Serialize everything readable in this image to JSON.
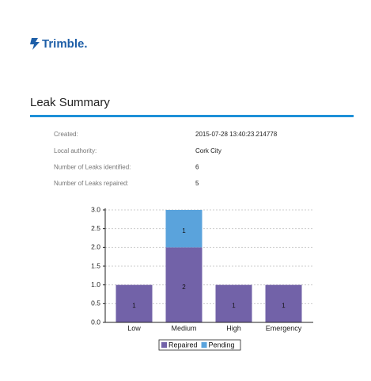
{
  "header": {
    "logo": "Trimble."
  },
  "report": {
    "title": "Leak Summary",
    "fields": [
      {
        "label": "Created:",
        "value": "2015-07-28 13:40:23.214778"
      },
      {
        "label": "Local authority:",
        "value": "Cork City"
      },
      {
        "label": "Number of Leaks identified:",
        "value": "6"
      },
      {
        "label": "Number of Leaks repaired:",
        "value": "5"
      }
    ]
  },
  "chart_data": {
    "type": "stacked_bar",
    "categories": [
      "Low",
      "Medium",
      "High",
      "Emergency"
    ],
    "series": [
      {
        "name": "Repaired",
        "color": "#7262a8",
        "values": [
          1,
          2,
          1,
          1
        ]
      },
      {
        "name": "Pending",
        "color": "#5aa3dc",
        "values": [
          0,
          1,
          0,
          0
        ]
      }
    ],
    "ylim": [
      0,
      3
    ],
    "yticks": [
      {
        "value": 0,
        "label": "0.0"
      },
      0.5,
      {
        "value": 1,
        "label": "1.0"
      },
      1.5,
      {
        "value": 2,
        "label": "2.0"
      },
      2.5,
      {
        "value": 3,
        "label": "3.0"
      }
    ],
    "grid": true,
    "legend": "bottom"
  }
}
